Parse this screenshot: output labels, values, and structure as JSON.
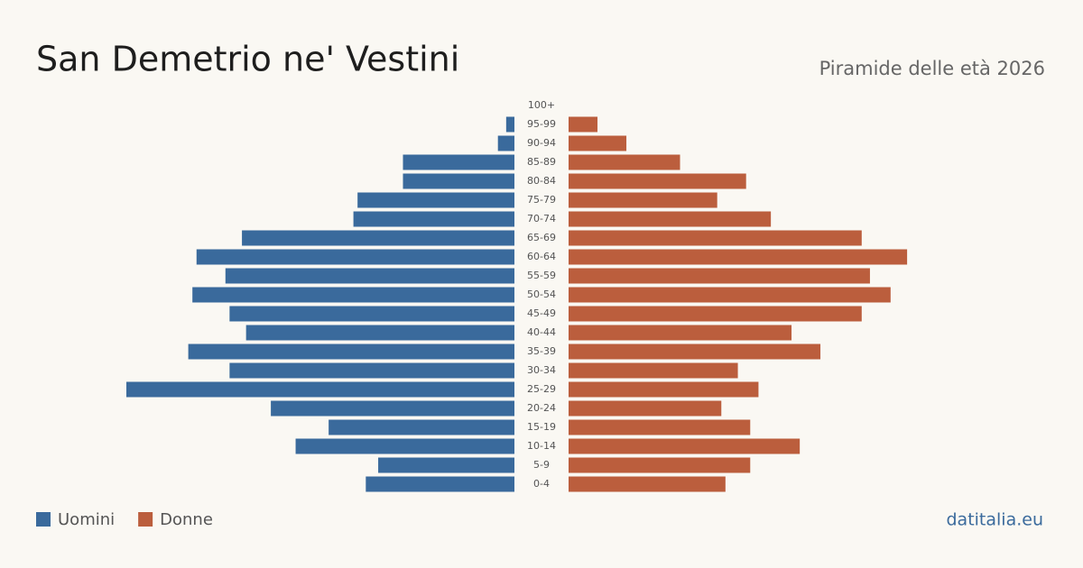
{
  "chart_data": {
    "type": "pyramid",
    "title": "San Demetrio ne' Vestini",
    "subtitle": "Piramide delle età 2026",
    "source": "datitalia.eu",
    "categories": [
      "100+",
      "95-99",
      "90-94",
      "85-89",
      "80-84",
      "75-79",
      "70-74",
      "65-69",
      "60-64",
      "55-59",
      "50-54",
      "45-49",
      "40-44",
      "35-39",
      "30-34",
      "25-29",
      "20-24",
      "15-19",
      "10-14",
      "5-9",
      "0-4"
    ],
    "series": [
      {
        "name": "Uomini",
        "color": "#3a6a9c",
        "values": [
          0,
          2,
          4,
          27,
          27,
          38,
          39,
          66,
          77,
          70,
          78,
          69,
          65,
          79,
          69,
          94,
          59,
          45,
          53,
          33,
          36
        ]
      },
      {
        "name": "Donne",
        "color": "#bb5e3d",
        "values": [
          0,
          7,
          14,
          27,
          43,
          36,
          49,
          71,
          82,
          73,
          78,
          71,
          54,
          61,
          41,
          46,
          37,
          44,
          56,
          44,
          38
        ]
      }
    ]
  }
}
